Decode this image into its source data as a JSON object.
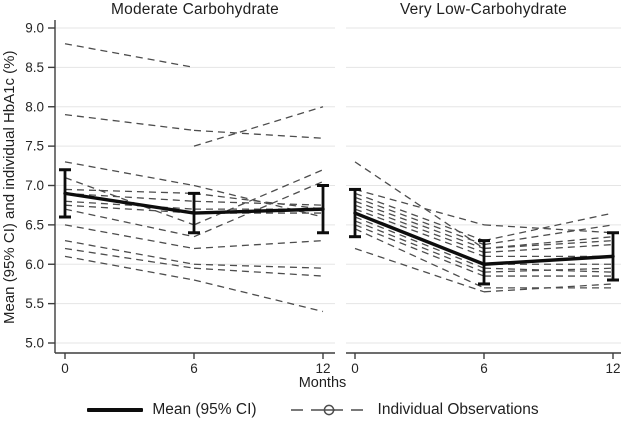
{
  "labels": {
    "months": "Months"
  },
  "legend": {
    "mean_label": "Mean (95% CI)",
    "individual_label": "Individual Observations"
  },
  "colors": {
    "mean": "#0d0d0d",
    "individual": "#4d4d4d",
    "grid": "#e5e5e5",
    "axis": "#3d3d3d",
    "tick_text": "#262626"
  },
  "chart_data": [
    {
      "type": "line",
      "panel": "left",
      "title": "Moderate Carbohydrate",
      "x": [
        0,
        6,
        12
      ],
      "x_tick_labels": [
        "0",
        "6",
        "12"
      ],
      "xlabel": "Months",
      "ylabel": "Mean (95% CI) and individual HbA1c (%)",
      "ylim": [
        5.0,
        9.0
      ],
      "yticks": [
        9.0,
        8.5,
        8.0,
        7.5,
        7.0,
        6.5,
        6.0,
        5.5,
        5.0
      ],
      "grid": "horizontal",
      "mean": {
        "name": "Mean (95% CI)",
        "values": [
          6.9,
          6.65,
          6.7
        ],
        "ci_low": [
          6.6,
          6.4,
          6.4
        ],
        "ci_high": [
          7.2,
          6.9,
          7.0
        ]
      },
      "individuals": [
        [
          8.8,
          8.5,
          null
        ],
        [
          7.9,
          7.7,
          7.6
        ],
        [
          null,
          7.5,
          8.0
        ],
        [
          7.3,
          7.0,
          6.6
        ],
        [
          7.1,
          6.5,
          7.2
        ],
        [
          6.95,
          6.9,
          6.7
        ],
        [
          6.9,
          6.8,
          6.75
        ],
        [
          6.8,
          6.7,
          6.7
        ],
        [
          6.75,
          6.65,
          6.65
        ],
        [
          6.7,
          6.35,
          7.05
        ],
        [
          6.5,
          6.2,
          6.3
        ],
        [
          6.3,
          6.0,
          5.95
        ],
        [
          6.2,
          5.95,
          5.85
        ],
        [
          6.1,
          5.8,
          5.4
        ]
      ]
    },
    {
      "type": "line",
      "panel": "right",
      "title": "Very Low-Carbohydrate",
      "x": [
        0,
        6,
        12
      ],
      "x_tick_labels": [
        "0",
        "6",
        "12"
      ],
      "xlabel": "Months",
      "ylabel": "Mean (95% CI) and individual HbA1c (%)",
      "ylim": [
        5.0,
        9.0
      ],
      "yticks": [
        9.0,
        8.5,
        8.0,
        7.5,
        7.0,
        6.5,
        6.0,
        5.5,
        5.0
      ],
      "grid": "horizontal",
      "mean": {
        "name": "Mean (95% CI)",
        "values": [
          6.65,
          6.0,
          6.1
        ],
        "ci_low": [
          6.35,
          5.75,
          5.8
        ],
        "ci_high": [
          6.95,
          6.3,
          6.4
        ]
      },
      "individuals": [
        [
          7.3,
          6.2,
          6.35
        ],
        [
          6.95,
          6.5,
          6.4
        ],
        [
          6.9,
          6.3,
          6.65
        ],
        [
          6.85,
          6.25,
          6.5
        ],
        [
          6.8,
          6.2,
          6.3
        ],
        [
          6.75,
          6.15,
          6.25
        ],
        [
          6.7,
          6.1,
          6.1
        ],
        [
          6.65,
          6.0,
          6.0
        ],
        [
          6.6,
          5.95,
          5.9
        ],
        [
          6.55,
          5.9,
          5.95
        ],
        [
          6.5,
          5.85,
          5.85
        ],
        [
          6.45,
          5.7,
          5.7
        ],
        [
          6.2,
          5.65,
          5.75
        ]
      ]
    }
  ]
}
